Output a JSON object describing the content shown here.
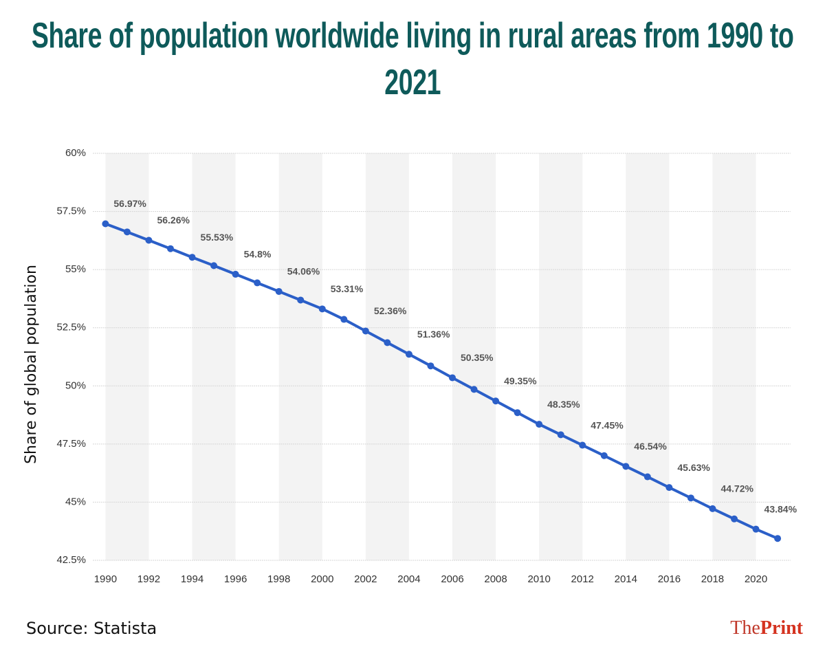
{
  "chart_data": {
    "type": "line",
    "title": "Share of population worldwide living in rural areas from 1990 to 2021",
    "y_label": "Share of global population",
    "x": [
      1990,
      1991,
      1992,
      1993,
      1994,
      1995,
      1996,
      1997,
      1998,
      1999,
      2000,
      2001,
      2002,
      2003,
      2004,
      2005,
      2006,
      2007,
      2008,
      2009,
      2010,
      2011,
      2012,
      2013,
      2014,
      2015,
      2016,
      2017,
      2018,
      2019,
      2020,
      2021
    ],
    "series": [
      {
        "color": "#2b5fc8",
        "values": [
          56.97,
          56.62,
          56.26,
          55.9,
          55.53,
          55.17,
          54.8,
          54.43,
          54.06,
          53.69,
          53.31,
          52.86,
          52.36,
          51.86,
          51.36,
          50.86,
          50.35,
          49.85,
          49.35,
          48.85,
          48.35,
          47.9,
          47.45,
          47.0,
          46.54,
          46.09,
          45.63,
          45.18,
          44.72,
          44.28,
          43.84,
          43.44
        ],
        "value_labels": [
          "56.97%",
          null,
          "56.26%",
          null,
          "55.53%",
          null,
          "54.8%",
          null,
          "54.06%",
          null,
          "53.31%",
          null,
          "52.36%",
          null,
          "51.36%",
          null,
          "50.35%",
          null,
          "49.35%",
          null,
          "48.35%",
          null,
          "47.45%",
          null,
          "46.54%",
          null,
          "45.63%",
          null,
          "44.72%",
          null,
          "43.84%",
          null
        ]
      }
    ],
    "xlim": [
      1989.1,
      2021.6
    ],
    "xticks": [
      1990,
      1992,
      1994,
      1996,
      1998,
      2000,
      2002,
      2004,
      2006,
      2008,
      2010,
      2012,
      2014,
      2016,
      2018,
      2020
    ],
    "ylim": [
      42.5,
      60
    ],
    "yticks": [
      {
        "value": 42.5,
        "label": "42.5%"
      },
      {
        "value": 45,
        "label": "45%"
      },
      {
        "value": 47.5,
        "label": "47.5%"
      },
      {
        "value": 50,
        "label": "50%"
      },
      {
        "value": 52.5,
        "label": "52.5%"
      },
      {
        "value": 55,
        "label": "55%"
      },
      {
        "value": 57.5,
        "label": "57.5%"
      },
      {
        "value": 60,
        "label": "60%"
      }
    ],
    "grid": true
  },
  "source": "Source: Statista",
  "brand": {
    "the": "The",
    "print": "Print"
  }
}
